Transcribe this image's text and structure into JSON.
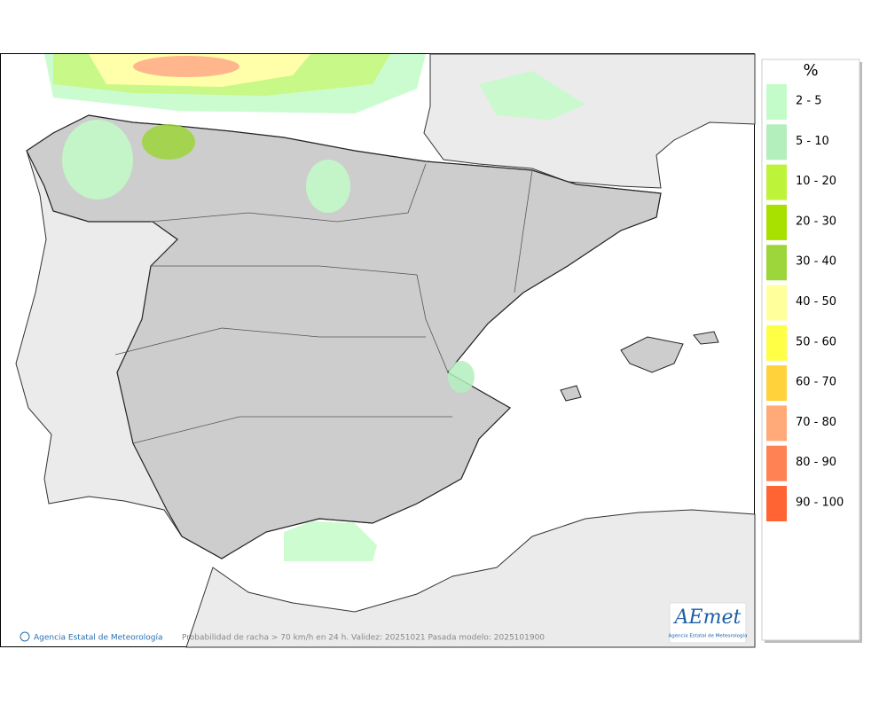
{
  "legend": {
    "title": "%",
    "items": [
      {
        "label": "2 - 5",
        "color": "#c3fcc8"
      },
      {
        "label": "5 - 10",
        "color": "#b3eebd"
      },
      {
        "label": "10 - 20",
        "color": "#bdf43a"
      },
      {
        "label": "20 - 30",
        "color": "#a8e000"
      },
      {
        "label": "30 - 40",
        "color": "#9dd63a"
      },
      {
        "label": "40 - 50",
        "color": "#ffff9c"
      },
      {
        "label": "50 - 60",
        "color": "#ffff46"
      },
      {
        "label": "60 - 70",
        "color": "#ffd23c"
      },
      {
        "label": "70 - 80",
        "color": "#ffaa78"
      },
      {
        "label": "80 - 90",
        "color": "#ff8255"
      },
      {
        "label": "90 - 100",
        "color": "#ff6432"
      }
    ]
  },
  "footer": {
    "credit": "Agencia Estatal de Meteorología",
    "caption": "Probabilidad de racha > 70 km/h en 24 h. Validez: 20251021 Pasada modelo: 2025101900"
  },
  "logo": {
    "name": "AEmet",
    "subtitle": "Agencia Estatal de Meteorología"
  }
}
